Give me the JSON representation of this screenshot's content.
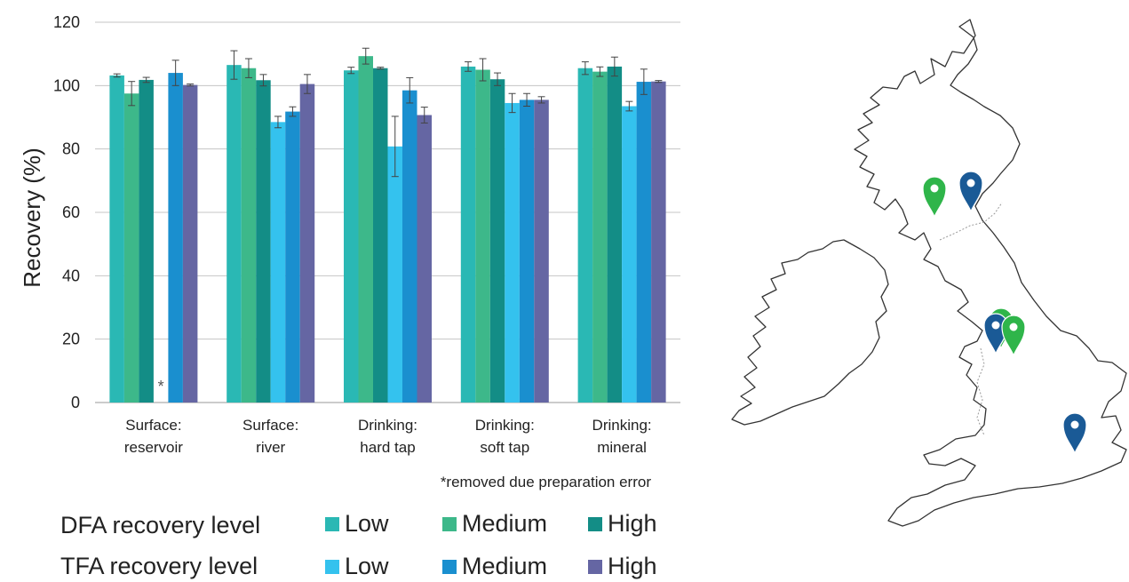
{
  "chart_data": {
    "type": "bar",
    "ylabel": "Recovery (%)",
    "ylim": [
      0,
      120
    ],
    "yticks": [
      0,
      20,
      40,
      60,
      80,
      100,
      120
    ],
    "grid": true,
    "categories": [
      [
        "Surface:",
        "reservoir"
      ],
      [
        "Surface:",
        "river"
      ],
      [
        "Drinking:",
        "hard tap"
      ],
      [
        "Drinking:",
        "soft tap"
      ],
      [
        "Drinking:",
        "mineral"
      ]
    ],
    "series": [
      {
        "group": "DFA",
        "level": "Low",
        "color": "#2ab8b4",
        "values": [
          103.2,
          106.5,
          104.8,
          106.0,
          105.5
        ],
        "errors": [
          0.5,
          4.5,
          1.0,
          1.5,
          2.0
        ]
      },
      {
        "group": "DFA",
        "level": "Medium",
        "color": "#3db88a",
        "values": [
          97.5,
          105.5,
          109.3,
          105.0,
          104.4
        ],
        "errors": [
          3.8,
          3.0,
          2.5,
          3.5,
          1.5
        ]
      },
      {
        "group": "DFA",
        "level": "High",
        "color": "#138d86",
        "values": [
          101.8,
          101.7,
          105.5,
          102.0,
          106.0
        ],
        "errors": [
          0.8,
          1.8,
          0.3,
          2.0,
          3.0
        ]
      },
      {
        "group": "TFA",
        "level": "Low",
        "color": "#34c2ee",
        "values": [
          null,
          88.5,
          80.8,
          94.5,
          93.5
        ],
        "errors": [
          0,
          1.8,
          9.5,
          3.0,
          1.5
        ]
      },
      {
        "group": "TFA",
        "level": "Medium",
        "color": "#1a8fcf",
        "values": [
          104.0,
          91.8,
          98.5,
          95.5,
          101.2
        ],
        "errors": [
          4.0,
          1.5,
          4.0,
          2.0,
          4.0
        ]
      },
      {
        "group": "TFA",
        "level": "High",
        "color": "#6566a3",
        "values": [
          100.2,
          100.5,
          90.7,
          95.5,
          101.3
        ],
        "errors": [
          0.3,
          3.0,
          2.5,
          1.0,
          0.3
        ]
      }
    ],
    "annotations": [
      {
        "category_index": 0,
        "series_index": 3,
        "text": "*"
      }
    ],
    "footnote": "*removed due preparation error"
  },
  "legend": {
    "dfa_title": "DFA recovery level",
    "tfa_title": "TFA recovery level",
    "dfa_items": [
      {
        "label": "Low",
        "color": "#2ab8b4"
      },
      {
        "label": "Medium",
        "color": "#3db88a"
      },
      {
        "label": "High",
        "color": "#138d86"
      }
    ],
    "tfa_items": [
      {
        "label": "Low",
        "color": "#34c2ee"
      },
      {
        "label": "Medium",
        "color": "#1a8fcf"
      },
      {
        "label": "High",
        "color": "#6566a3"
      }
    ]
  },
  "map": {
    "markers": [
      {
        "name": "green-marker-scotland-west",
        "color": "#2fb54a"
      },
      {
        "name": "blue-marker-scotland-east",
        "color": "#1a5a96"
      },
      {
        "name": "green-marker-midlands-north",
        "color": "#2fb54a"
      },
      {
        "name": "blue-marker-midlands",
        "color": "#1a5a96"
      },
      {
        "name": "green-marker-midlands-east",
        "color": "#2fb54a"
      },
      {
        "name": "blue-marker-south-east",
        "color": "#1a5a96"
      }
    ]
  }
}
